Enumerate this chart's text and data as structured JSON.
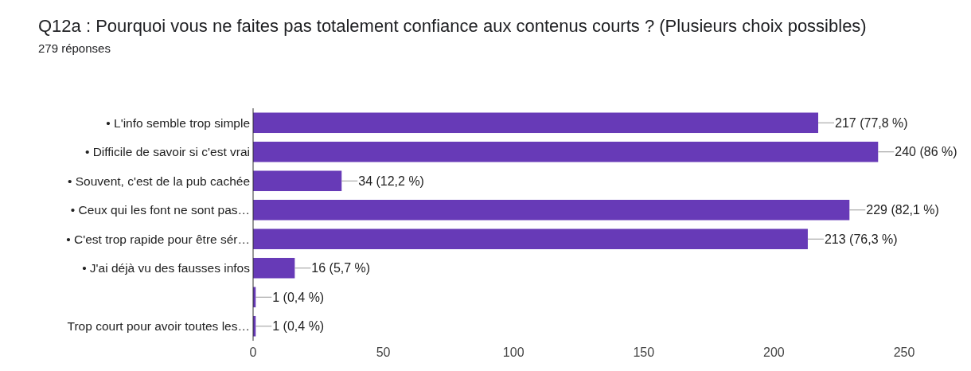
{
  "chart_data": {
    "type": "bar",
    "orientation": "horizontal",
    "title": "Q12a : Pourquoi vous ne faites pas totalement confiance aux contenus courts ? (Plusieurs choix possibles)",
    "subtitle": "279 réponses",
    "categories": [
      "• L'info semble trop simple",
      "• Difficile de savoir si c'est vrai",
      "• Souvent, c'est de la pub cachée",
      "• Ceux qui les font ne sont pas…",
      "• C'est trop rapide pour être sér…",
      "• J'ai déjà vu des fausses infos",
      null,
      "Trop court pour avoir toutes les…"
    ],
    "values": [
      217,
      240,
      34,
      229,
      213,
      16,
      1,
      1
    ],
    "value_labels": [
      "217 (77,8 %)",
      "240 (86 %)",
      "34 (12,2 %)",
      "229 (82,1 %)",
      "213 (76,3 %)",
      "16 (5,7 %)",
      "1 (0,4 %)",
      "1 (0,4 %)"
    ],
    "color": "#673ab7",
    "xlim": [
      0,
      250
    ],
    "xticks": [
      0,
      50,
      100,
      150,
      200,
      250
    ]
  }
}
